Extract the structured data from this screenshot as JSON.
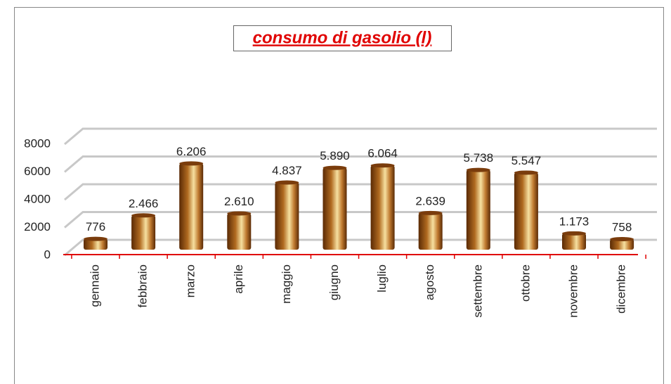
{
  "chart_data": {
    "type": "bar",
    "title": "consumo di gasolio (l)",
    "categories": [
      "gennaio",
      "febbraio",
      "marzo",
      "aprile",
      "maggio",
      "giugno",
      "luglio",
      "agosto",
      "settembre",
      "ottobre",
      "novembre",
      "dicembre"
    ],
    "values": [
      776,
      2466,
      6206,
      2610,
      4837,
      5890,
      6064,
      2639,
      5738,
      5547,
      1173,
      758
    ],
    "value_labels": [
      "776",
      "2.466",
      "6.206",
      "2.610",
      "4.837",
      "5.890",
      "6.064",
      "2.639",
      "5.738",
      "5.547",
      "1.173",
      "758"
    ],
    "color": "#8a4a12",
    "ylim": [
      0,
      8000
    ],
    "yticks": [
      0,
      2000,
      4000,
      6000,
      8000
    ],
    "grid": true
  }
}
